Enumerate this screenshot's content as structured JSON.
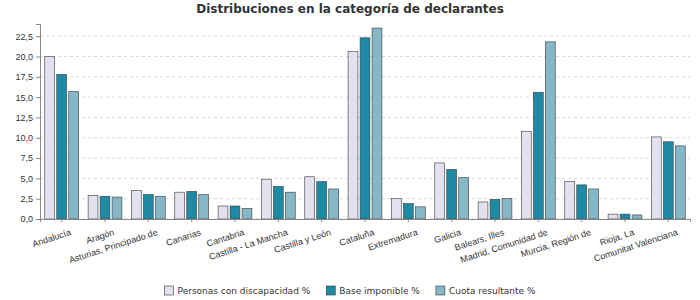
{
  "chart_data": {
    "type": "bar",
    "title": "Distribuciones en la categoría de declarantes",
    "categories": [
      "Andalucía",
      "Aragón",
      "Asturias, Principado de",
      "Canarias",
      "Cantabria",
      "Castilla - La Mancha",
      "Castilla y León",
      "Cataluña",
      "Extremadura",
      "Galicia",
      "Balears, Illes",
      "Madrid, Comunidad de",
      "Murcia, Región de",
      "Rioja, La",
      "Comunitat Valenciana"
    ],
    "series": [
      {
        "name": "Personas con discapacidad %",
        "color": "#e1e1f0",
        "values": [
          20.0,
          2.9,
          3.5,
          3.3,
          1.6,
          4.9,
          5.2,
          20.6,
          2.5,
          6.9,
          2.1,
          10.8,
          4.6,
          0.6,
          10.1
        ]
      },
      {
        "name": "Base imponible %",
        "color": "#1f8aa6",
        "values": [
          17.8,
          2.8,
          3.0,
          3.4,
          1.6,
          4.0,
          4.6,
          22.3,
          1.9,
          6.1,
          2.4,
          15.6,
          4.2,
          0.6,
          9.5
        ]
      },
      {
        "name": "Cuota resultante %",
        "color": "#86b7c6",
        "values": [
          15.7,
          2.7,
          2.8,
          3.0,
          1.3,
          3.3,
          3.7,
          23.5,
          1.5,
          5.1,
          2.5,
          21.8,
          3.7,
          0.5,
          9.0
        ]
      }
    ],
    "ylim": [
      0,
      24
    ],
    "yticks": [
      {
        "value": 0,
        "label": "0,0"
      },
      {
        "value": 2.5,
        "label": "2,5"
      },
      {
        "value": 5,
        "label": "5,0"
      },
      {
        "value": 7.5,
        "label": "7,5"
      },
      {
        "value": 10,
        "label": "10,0"
      },
      {
        "value": 12.5,
        "label": "12,5"
      },
      {
        "value": 15,
        "label": "15,0"
      },
      {
        "value": 17.5,
        "label": "17,5"
      },
      {
        "value": 20,
        "label": "20,0"
      },
      {
        "value": 22.5,
        "label": "22,5"
      }
    ],
    "grid": true,
    "legend": "bottom"
  }
}
